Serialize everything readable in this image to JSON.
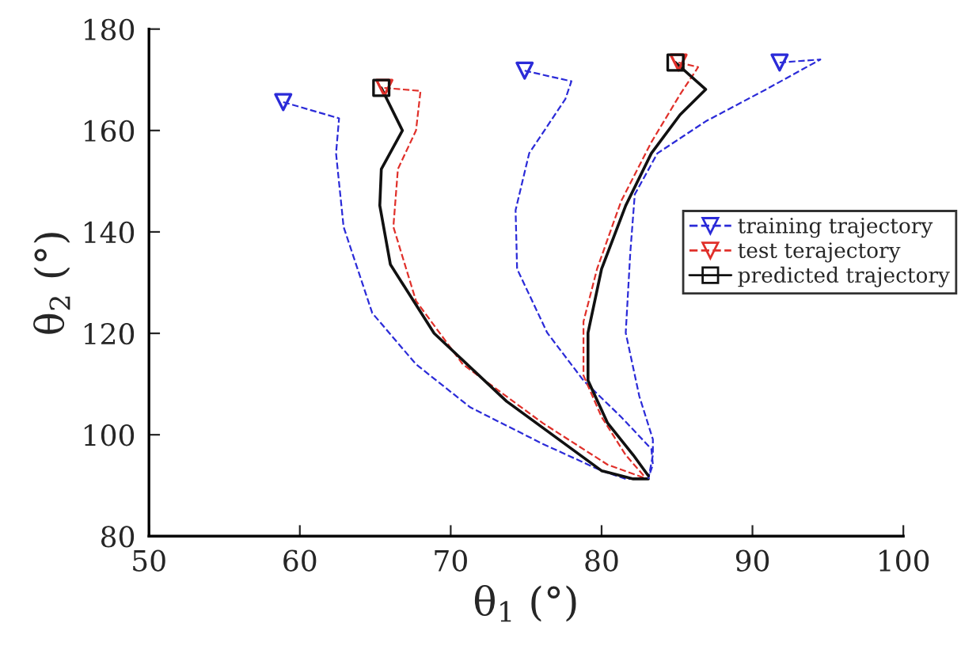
{
  "chart_data": {
    "type": "line",
    "xlabel": "θ$_{1}$ (°)",
    "ylabel": "θ$_{2}$ (°)",
    "xlim": [
      50,
      100
    ],
    "ylim": [
      80,
      180
    ],
    "xticks": [
      50,
      60,
      70,
      80,
      90,
      100
    ],
    "yticks": [
      80,
      100,
      120,
      140,
      160,
      180
    ],
    "grid": false,
    "legend": "right",
    "series": [
      {
        "name": "training trajectory",
        "color": "#2b2bd8",
        "line_style": "dashed",
        "x": [
          58.9,
          62.6,
          62.4,
          62.9,
          64.8,
          67.7,
          71.3,
          76.1,
          80.0,
          81.6,
          83.1
        ],
        "values": [
          165.6,
          162.4,
          155.5,
          141,
          124,
          113.9,
          105.4,
          98.2,
          92.9,
          91.3,
          91.3
        ]
      },
      {
        "name": "test terajectory",
        "color": "#e0302a",
        "line_style": "dashed",
        "x": [
          65.6,
          68.0,
          67.7,
          66.5,
          66.2,
          67.7,
          70.8,
          76.1,
          80.4,
          83.0
        ],
        "values": [
          168.4,
          167.8,
          160,
          152.4,
          141,
          126.4,
          113.9,
          102.3,
          94.1,
          91.3
        ]
      },
      {
        "name": "predicted trajectory",
        "color": "#111111",
        "line_style": "solid",
        "x": [
          65.4,
          66.8,
          65.4,
          65.3,
          66.0,
          68.9,
          73.7,
          80.0,
          82.1,
          83.1
        ],
        "values": [
          168.4,
          160,
          152.4,
          145.2,
          133.6,
          120,
          106.6,
          92.9,
          91.3,
          91.3
        ]
      },
      {
        "color": "#2b2bd8",
        "line_style": "dashed",
        "x": [
          74.9,
          78.0,
          77.6,
          75.2,
          74.3,
          74.4,
          76.4,
          78.8,
          81.3,
          83.3,
          83.4,
          83.1
        ],
        "values": [
          171.8,
          169.7,
          166.2,
          155.5,
          144.3,
          132.7,
          120.1,
          110.7,
          103.5,
          97.2,
          94.1,
          91.5
        ]
      },
      {
        "color": "#2b2bd8",
        "line_style": "dashed",
        "x": [
          91.8,
          94.5,
          90.9,
          86.9,
          83.7,
          82.2,
          81.9,
          81.6,
          82.5,
          83.4,
          83.4,
          83.1
        ],
        "values": [
          173.4,
          174,
          168.1,
          161.8,
          155.5,
          147.4,
          135.8,
          120.1,
          107.6,
          99.1,
          96,
          91.3
        ]
      },
      {
        "color": "#e0302a",
        "line_style": "dashed",
        "x": [
          85.1,
          86.4,
          85.2,
          83.3,
          81.3,
          79.7,
          78.8,
          78.8,
          80.0,
          81.6,
          82.8
        ],
        "values": [
          173.4,
          172.5,
          167.1,
          157.7,
          146.1,
          132.7,
          122.3,
          111.7,
          103.5,
          96,
          91.9
        ]
      },
      {
        "color": "#111111",
        "line_style": "solid",
        "x": [
          84.9,
          86.9,
          85.2,
          83.3,
          81.6,
          80.0,
          79.1,
          79.1,
          80.4,
          82.1,
          83.1
        ],
        "values": [
          173.4,
          168.1,
          163.1,
          155.5,
          145.2,
          132.7,
          120.1,
          110.7,
          102.3,
          96,
          91.9
        ]
      },
      {
        "type": "scatter",
        "color": "#2b2bd8",
        "marker": "triangle",
        "x": [
          58.9,
          74.9,
          91.8
        ],
        "values": [
          165.6,
          171.8,
          173.4
        ]
      },
      {
        "type": "scatter",
        "color": "#e0302a",
        "marker": "triangle",
        "x": [
          65.6,
          85.1
        ],
        "values": [
          168.4,
          173.4
        ]
      },
      {
        "type": "scatter",
        "color": "#111111",
        "marker": "square",
        "x": [
          65.4,
          84.9
        ],
        "values": [
          168.4,
          173.4
        ]
      }
    ]
  }
}
